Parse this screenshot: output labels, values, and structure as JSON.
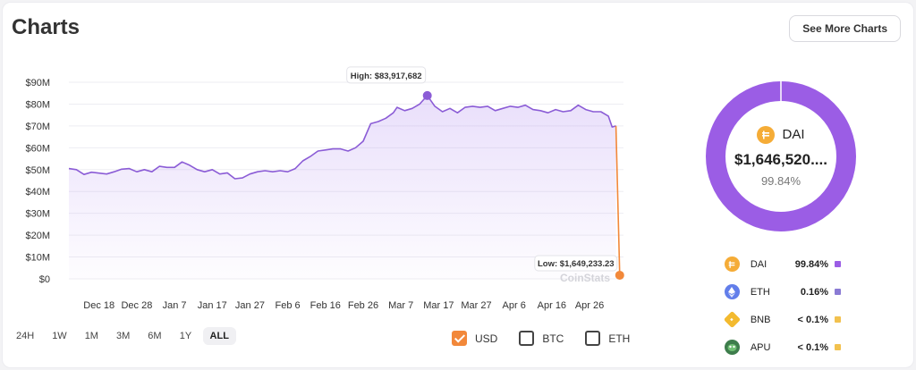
{
  "header": {
    "title": "Charts",
    "see_more_label": "See More Charts"
  },
  "chart_data": {
    "type": "area",
    "title": "",
    "xlabel": "",
    "ylabel": "",
    "ylim": [
      0,
      90000000
    ],
    "y_ticks": [
      "$0",
      "$10M",
      "$20M",
      "$30M",
      "$40M",
      "$50M",
      "$60M",
      "$70M",
      "$80M",
      "$90M"
    ],
    "x_ticks": [
      "Dec 18",
      "Dec 28",
      "Jan 7",
      "Jan 17",
      "Jan 27",
      "Feb 6",
      "Feb 16",
      "Feb 26",
      "Mar 7",
      "Mar 17",
      "Mar 27",
      "Apr 6",
      "Apr 16",
      "Apr 26"
    ],
    "x_range": [
      "2023-12-10",
      "2024-05-05"
    ],
    "high_label": "High: $83,917,682",
    "low_label": "Low: $1,649,233.23",
    "watermark": "CoinStats",
    "grid": true,
    "series": [
      {
        "color": "#8b5cd6",
        "points": [
          [
            "2023-12-10",
            50.5
          ],
          [
            "2023-12-12",
            50.0
          ],
          [
            "2023-12-14",
            47.8
          ],
          [
            "2023-12-16",
            48.8
          ],
          [
            "2023-12-18",
            48.4
          ],
          [
            "2023-12-20",
            48.0
          ],
          [
            "2023-12-22",
            49.0
          ],
          [
            "2023-12-24",
            50.2
          ],
          [
            "2023-12-26",
            50.5
          ],
          [
            "2023-12-28",
            49.0
          ],
          [
            "2023-12-30",
            50.0
          ],
          [
            "2024-01-01",
            49.0
          ],
          [
            "2024-01-03",
            51.5
          ],
          [
            "2024-01-05",
            51.0
          ],
          [
            "2024-01-07",
            51.0
          ],
          [
            "2024-01-09",
            53.5
          ],
          [
            "2024-01-11",
            52.0
          ],
          [
            "2024-01-13",
            50.0
          ],
          [
            "2024-01-15",
            49.0
          ],
          [
            "2024-01-17",
            50.0
          ],
          [
            "2024-01-19",
            48.0
          ],
          [
            "2024-01-21",
            48.5
          ],
          [
            "2024-01-23",
            45.8
          ],
          [
            "2024-01-25",
            46.2
          ],
          [
            "2024-01-27",
            48.0
          ],
          [
            "2024-01-29",
            49.0
          ],
          [
            "2024-01-31",
            49.5
          ],
          [
            "2024-02-02",
            49.0
          ],
          [
            "2024-02-04",
            49.5
          ],
          [
            "2024-02-06",
            49.0
          ],
          [
            "2024-02-08",
            50.5
          ],
          [
            "2024-02-10",
            54.0
          ],
          [
            "2024-02-12",
            56.0
          ],
          [
            "2024-02-14",
            58.5
          ],
          [
            "2024-02-16",
            59.0
          ],
          [
            "2024-02-18",
            59.5
          ],
          [
            "2024-02-20",
            59.5
          ],
          [
            "2024-02-22",
            58.5
          ],
          [
            "2024-02-24",
            60.0
          ],
          [
            "2024-02-26",
            63.0
          ],
          [
            "2024-02-28",
            71.0
          ],
          [
            "2024-03-01",
            72.0
          ],
          [
            "2024-03-03",
            73.5
          ],
          [
            "2024-03-05",
            76.0
          ],
          [
            "2024-03-06",
            78.5
          ],
          [
            "2024-03-08",
            77.0
          ],
          [
            "2024-03-10",
            78.0
          ],
          [
            "2024-03-12",
            80.0
          ],
          [
            "2024-03-14",
            83.9
          ],
          [
            "2024-03-16",
            79.0
          ],
          [
            "2024-03-18",
            76.5
          ],
          [
            "2024-03-20",
            78.0
          ],
          [
            "2024-03-22",
            76.0
          ],
          [
            "2024-03-24",
            78.5
          ],
          [
            "2024-03-26",
            79.0
          ],
          [
            "2024-03-28",
            78.5
          ],
          [
            "2024-03-30",
            79.0
          ],
          [
            "2024-04-01",
            77.0
          ],
          [
            "2024-04-03",
            78.0
          ],
          [
            "2024-04-05",
            79.0
          ],
          [
            "2024-04-07",
            78.5
          ],
          [
            "2024-04-09",
            79.5
          ],
          [
            "2024-04-11",
            77.5
          ],
          [
            "2024-04-13",
            77.0
          ],
          [
            "2024-04-15",
            76.0
          ],
          [
            "2024-04-17",
            77.5
          ],
          [
            "2024-04-19",
            76.5
          ],
          [
            "2024-04-21",
            77.0
          ],
          [
            "2024-04-23",
            79.5
          ],
          [
            "2024-04-25",
            77.5
          ],
          [
            "2024-04-27",
            76.5
          ],
          [
            "2024-04-29",
            76.5
          ],
          [
            "2024-05-01",
            74.5
          ],
          [
            "2024-05-02",
            69.5
          ],
          [
            "2024-05-03",
            70.0
          ],
          [
            "2024-05-04",
            1.65
          ]
        ]
      }
    ]
  },
  "time_ranges": [
    {
      "label": "24H",
      "active": false
    },
    {
      "label": "1W",
      "active": false
    },
    {
      "label": "1M",
      "active": false
    },
    {
      "label": "3M",
      "active": false
    },
    {
      "label": "6M",
      "active": false
    },
    {
      "label": "1Y",
      "active": false
    },
    {
      "label": "ALL",
      "active": true
    }
  ],
  "currencies": [
    {
      "label": "USD",
      "checked": true
    },
    {
      "label": "BTC",
      "checked": false
    },
    {
      "label": "ETH",
      "checked": false
    }
  ],
  "donut": {
    "center_name": "DAI",
    "center_value": "$1,646,520....",
    "center_pct": "99.84%",
    "slices": [
      {
        "name": "DAI",
        "pct_label": "99.84%",
        "value": 99.84,
        "color": "#9b5de5",
        "icon": "dai-icon"
      },
      {
        "name": "ETH",
        "pct_label": "0.16%",
        "value": 0.16,
        "color": "#8a7bd4",
        "icon": "eth-icon"
      },
      {
        "name": "BNB",
        "pct_label": "< 0.1%",
        "value": 0.0,
        "color": "#f2c14e",
        "icon": "bnb-icon"
      },
      {
        "name": "APU",
        "pct_label": "< 0.1%",
        "value": 0.0,
        "color": "#f2c14e",
        "icon": "apu-icon"
      }
    ]
  }
}
